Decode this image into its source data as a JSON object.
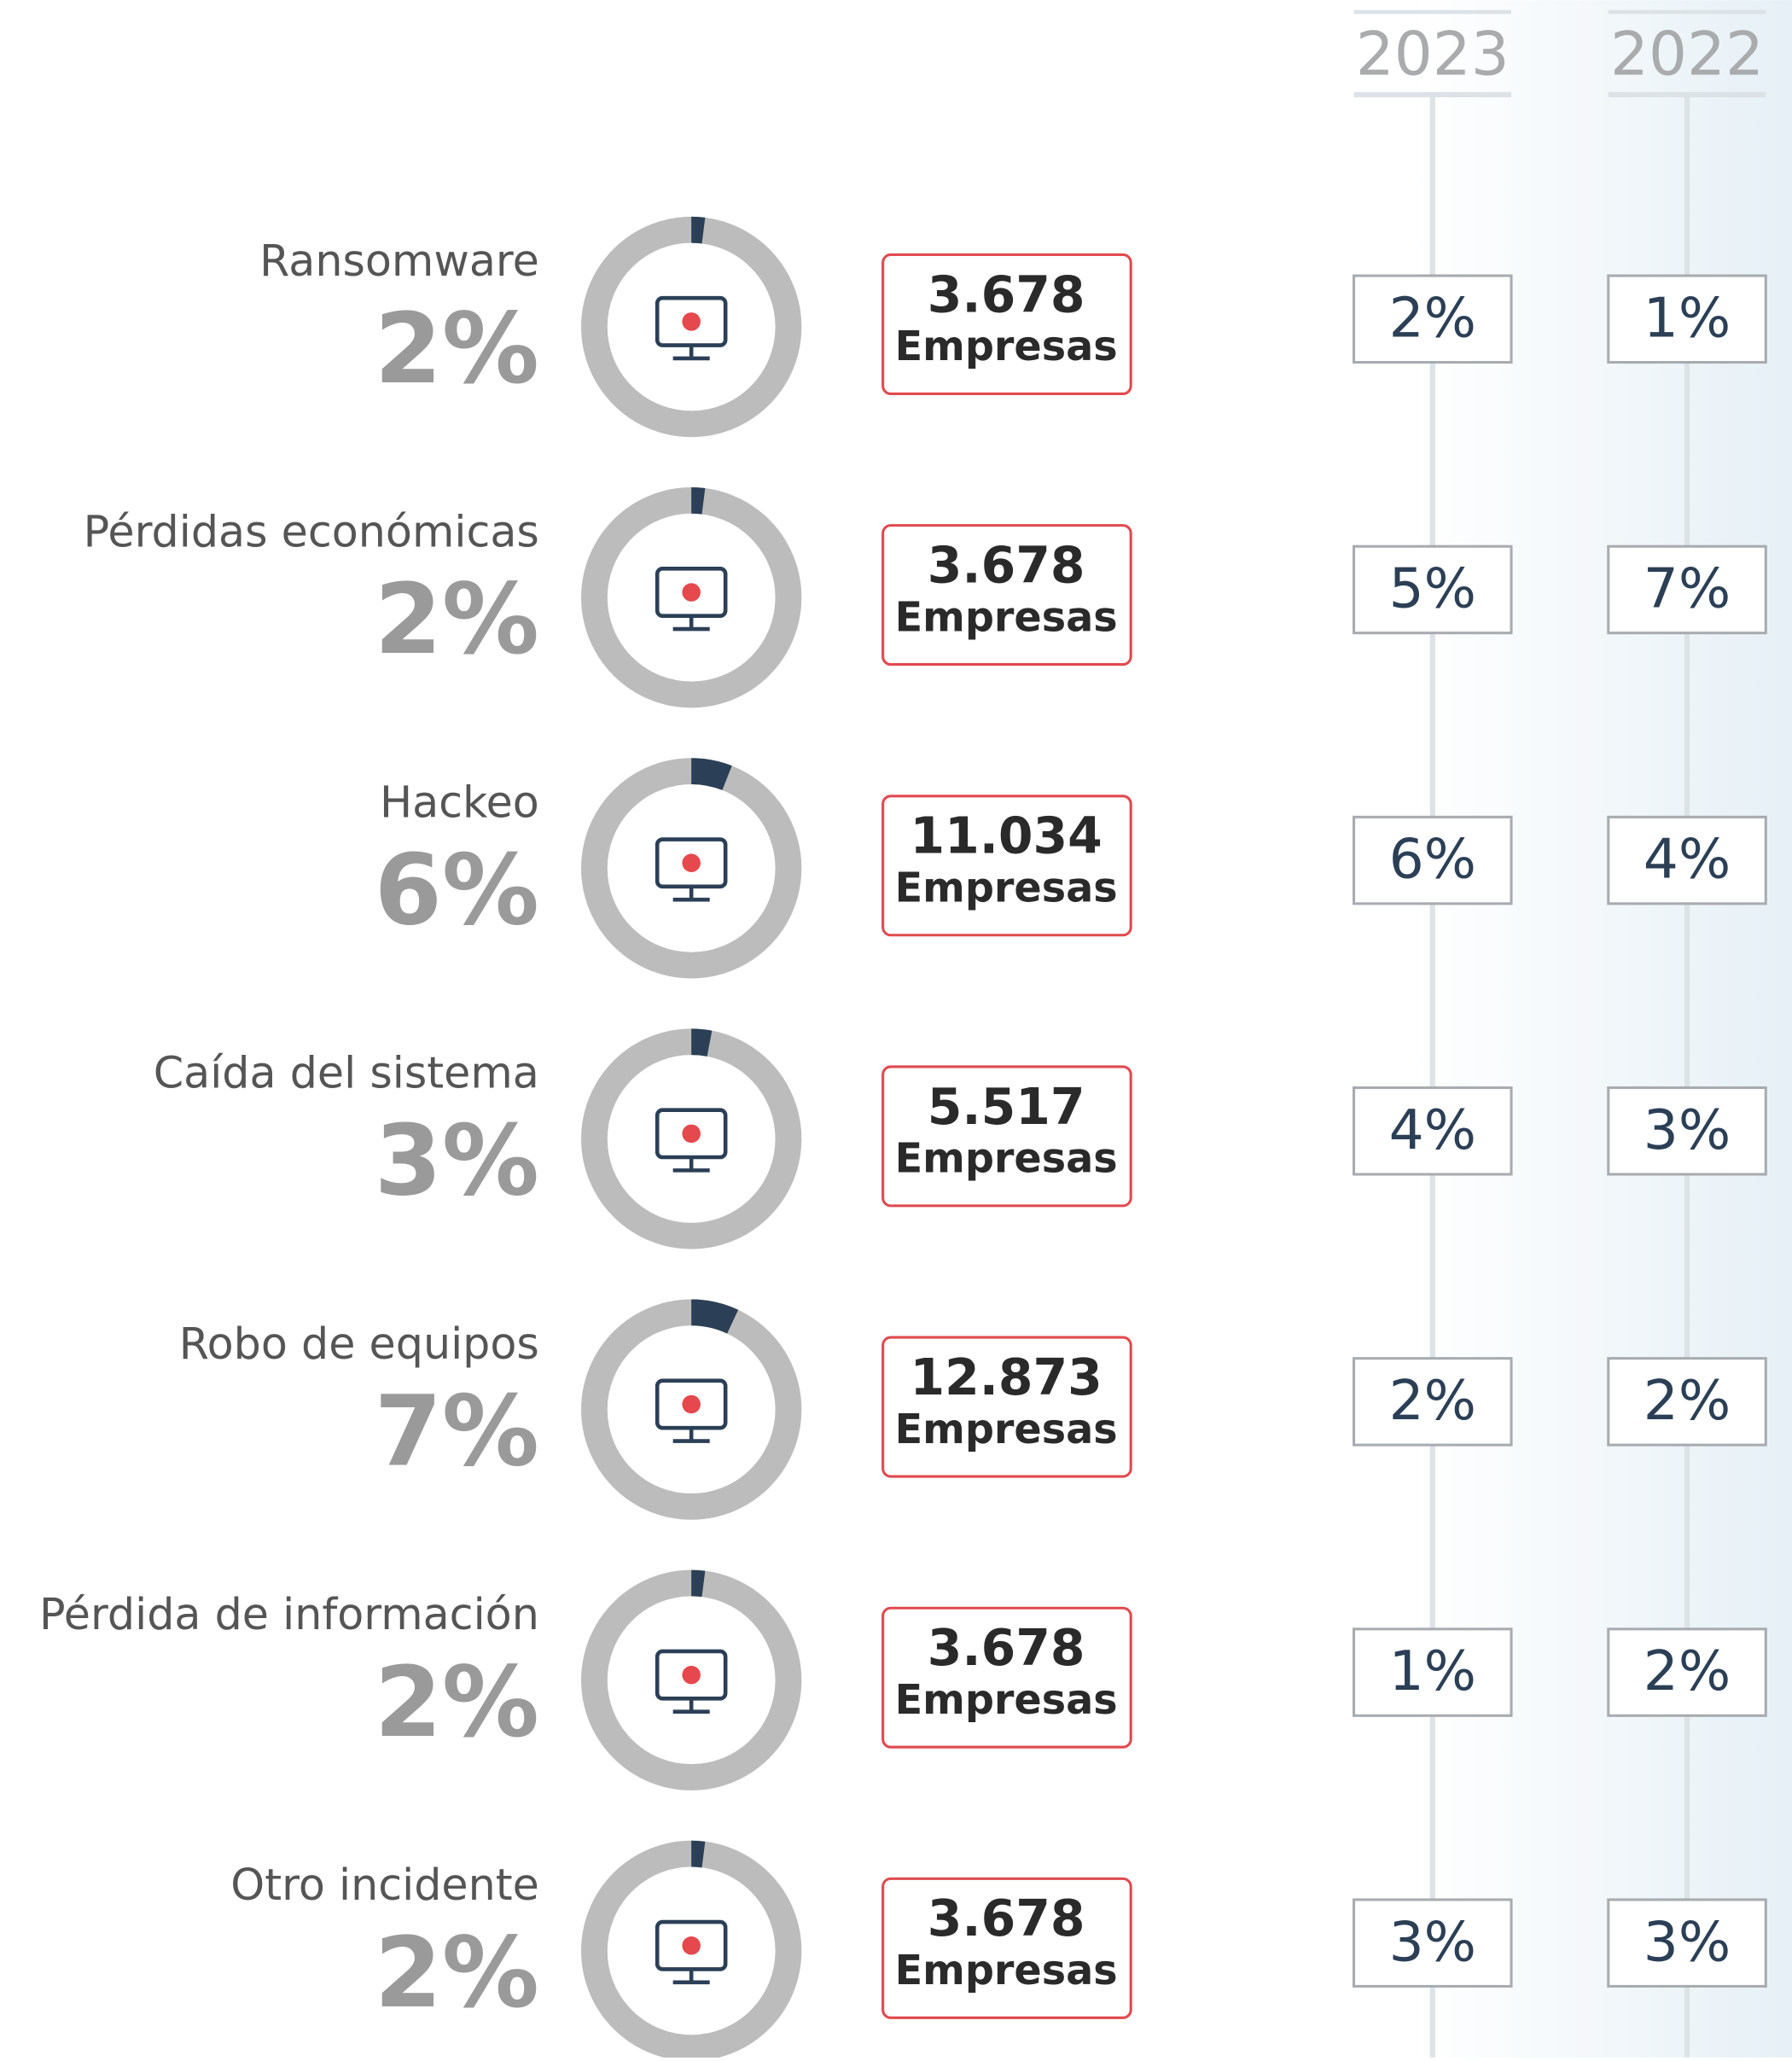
{
  "columns": [
    "2023",
    "2022"
  ],
  "rows": [
    {
      "label": "Ransomware",
      "value": 2,
      "value_label": "2%",
      "companies": "3.678",
      "unit": "Empresas",
      "years": [
        "2%",
        "1%"
      ]
    },
    {
      "label": "Pérdidas económicas",
      "value": 2,
      "value_label": "2%",
      "companies": "3.678",
      "unit": "Empresas",
      "years": [
        "5%",
        "7%"
      ]
    },
    {
      "label": "Hackeo",
      "value": 6,
      "value_label": "6%",
      "companies": "11.034",
      "unit": "Empresas",
      "years": [
        "6%",
        "4%"
      ]
    },
    {
      "label": "Caída del sistema",
      "value": 3,
      "value_label": "3%",
      "companies": "5.517",
      "unit": "Empresas",
      "years": [
        "4%",
        "3%"
      ]
    },
    {
      "label": "Robo de equipos",
      "value": 7,
      "value_label": "7%",
      "companies": "12.873",
      "unit": "Empresas",
      "years": [
        "2%",
        "2%"
      ]
    },
    {
      "label": "Pérdida de información",
      "value": 2,
      "value_label": "2%",
      "companies": "3.678",
      "unit": "Empresas",
      "years": [
        "1%",
        "2%"
      ]
    },
    {
      "label": "Otro incidente",
      "value": 2,
      "value_label": "2%",
      "companies": "3.678",
      "unit": "Empresas",
      "years": [
        "3%",
        "3%"
      ]
    }
  ]
}
